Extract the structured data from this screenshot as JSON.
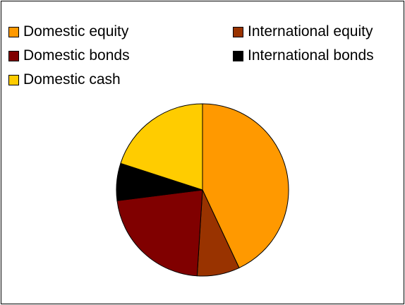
{
  "chart_data": {
    "type": "pie",
    "title": "",
    "legend_position": "top",
    "start_angle_deg": 0,
    "direction": "clockwise",
    "slices": [
      {
        "label": "Domestic equity",
        "value": 43,
        "color": "#FF9900"
      },
      {
        "label": "International equity",
        "value": 8,
        "color": "#993300"
      },
      {
        "label": "Domestic bonds",
        "value": 22,
        "color": "#800000"
      },
      {
        "label": "International bonds",
        "value": 7,
        "color": "#000000"
      },
      {
        "label": "Domestic cash",
        "value": 20,
        "color": "#FFCC00"
      }
    ],
    "legend": [
      {
        "label": "Domestic equity",
        "color": "#FF9900"
      },
      {
        "label": "International equity",
        "color": "#993300"
      },
      {
        "label": "Domestic bonds",
        "color": "#800000"
      },
      {
        "label": "International bonds",
        "color": "#000000"
      },
      {
        "label": "Domestic cash",
        "color": "#FFCC00"
      }
    ]
  }
}
